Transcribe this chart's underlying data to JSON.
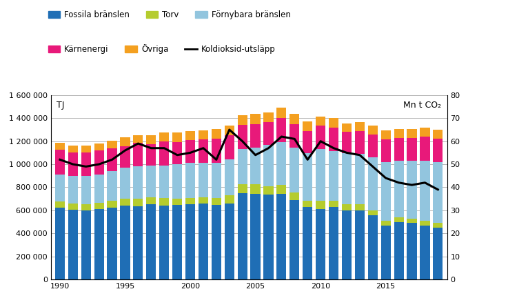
{
  "years": [
    1990,
    1991,
    1992,
    1993,
    1994,
    1995,
    1996,
    1997,
    1998,
    1999,
    2000,
    2001,
    2002,
    2003,
    2004,
    2005,
    2006,
    2007,
    2008,
    2009,
    2010,
    2011,
    2012,
    2013,
    2014,
    2015,
    2016,
    2017,
    2018,
    2019
  ],
  "fossila": [
    620000,
    605000,
    600000,
    610000,
    625000,
    640000,
    635000,
    650000,
    640000,
    645000,
    655000,
    660000,
    645000,
    660000,
    750000,
    745000,
    735000,
    745000,
    690000,
    630000,
    610000,
    630000,
    600000,
    600000,
    560000,
    470000,
    500000,
    490000,
    470000,
    450000
  ],
  "torv": [
    55000,
    55000,
    50000,
    55000,
    60000,
    60000,
    65000,
    65000,
    65000,
    55000,
    50000,
    55000,
    60000,
    70000,
    75000,
    80000,
    75000,
    75000,
    65000,
    50000,
    70000,
    55000,
    55000,
    50000,
    40000,
    40000,
    40000,
    40000,
    40000,
    40000
  ],
  "fornybara": [
    235000,
    240000,
    250000,
    245000,
    255000,
    270000,
    285000,
    275000,
    285000,
    300000,
    305000,
    295000,
    310000,
    310000,
    310000,
    320000,
    360000,
    375000,
    390000,
    415000,
    450000,
    430000,
    440000,
    440000,
    460000,
    510000,
    490000,
    500000,
    520000,
    530000
  ],
  "karnenergi": [
    215000,
    200000,
    200000,
    210000,
    200000,
    185000,
    200000,
    185000,
    210000,
    195000,
    200000,
    205000,
    210000,
    215000,
    210000,
    205000,
    195000,
    205000,
    205000,
    195000,
    205000,
    205000,
    185000,
    200000,
    200000,
    195000,
    200000,
    200000,
    210000,
    200000
  ],
  "ovriga": [
    60000,
    65000,
    60000,
    60000,
    65000,
    80000,
    70000,
    75000,
    75000,
    80000,
    80000,
    80000,
    80000,
    80000,
    80000,
    85000,
    85000,
    90000,
    90000,
    80000,
    80000,
    80000,
    75000,
    75000,
    75000,
    80000,
    75000,
    75000,
    80000,
    80000
  ],
  "co2": [
    52,
    50,
    49,
    50,
    52,
    56,
    59,
    57,
    57,
    54,
    55,
    57,
    52,
    65,
    60,
    54,
    57,
    62,
    61,
    52,
    60,
    57,
    55,
    54,
    49,
    44,
    42,
    41,
    42,
    39
  ],
  "bar_colors": {
    "fossila": "#1f6eb5",
    "torv": "#b5cc2e",
    "fornybara": "#92c5de",
    "karnenergi": "#e8197a",
    "ovriga": "#f4a020"
  },
  "co2_color": "#000000",
  "ylabel_left": "TJ",
  "ylabel_right": "Mn t CO₂",
  "ylim_left": [
    0,
    1600000
  ],
  "ylim_right": [
    0,
    80
  ],
  "yticks_left": [
    0,
    200000,
    400000,
    600000,
    800000,
    1000000,
    1200000,
    1400000,
    1600000
  ],
  "yticks_right": [
    0,
    10,
    20,
    30,
    40,
    50,
    60,
    70,
    80
  ],
  "xticks": [
    1990,
    1995,
    2000,
    2005,
    2010,
    2015
  ],
  "legend_row1": [
    "Fossila bränslen",
    "Torv",
    "Förnybara bränslen"
  ],
  "legend_row2": [
    "Kärnenergi",
    "Övriga",
    "Koldioksid-utsläpp"
  ],
  "background_color": "#ffffff",
  "grid_color": "#aaaaaa"
}
